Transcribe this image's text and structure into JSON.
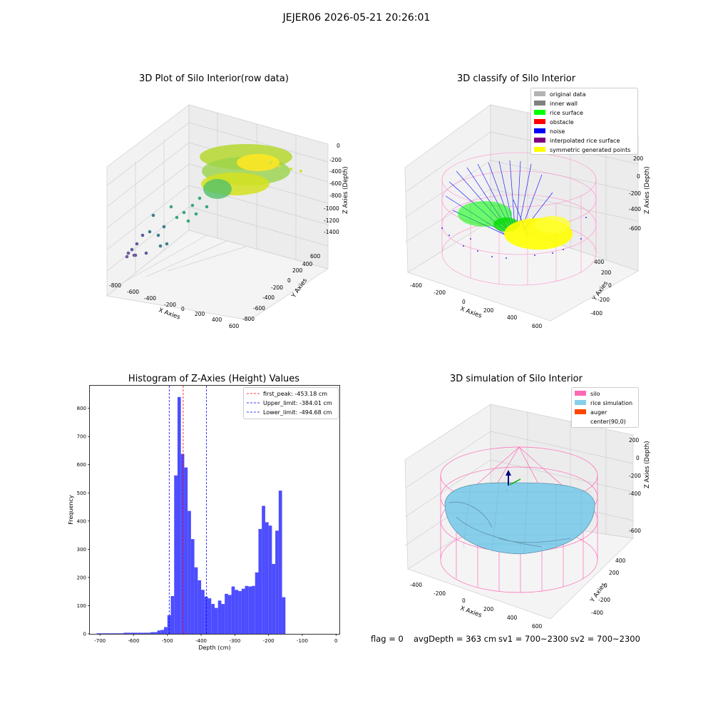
{
  "suptitle": "JEJER06 2026-05-21 20:26:01",
  "panels": {
    "raw": {
      "title": "3D Plot of Silo Interior(row data)",
      "xlabel": "X Axies",
      "ylabel": "Y Axies",
      "zlabel": "Z Axies (Depth)",
      "xticks": [
        "-800",
        "-600",
        "-400",
        "-200",
        "0",
        "200",
        "400",
        "600"
      ],
      "yticks": [
        "-800",
        "-600",
        "-400",
        "-200",
        "0",
        "200",
        "400",
        "600"
      ],
      "zticks": [
        "0",
        "-200",
        "-400",
        "-600",
        "-800",
        "-1000",
        "-1200",
        "-1400"
      ]
    },
    "classify": {
      "title": "3D classify of Silo Interior",
      "xlabel": "X Axies",
      "ylabel": "Y Axies",
      "zlabel": "Z Axies (Depth)",
      "xticks": [
        "-400",
        "-200",
        "0",
        "200",
        "400",
        "600"
      ],
      "yticks": [
        "-400",
        "-200",
        "0",
        "200",
        "400"
      ],
      "zticks": [
        "200",
        "0",
        "-200",
        "-400",
        "-600"
      ],
      "legend": [
        {
          "label": "original data",
          "color": "#b3b3b3"
        },
        {
          "label": "inner wall",
          "color": "#808080"
        },
        {
          "label": "rice surface",
          "color": "#00ff00"
        },
        {
          "label": "obstacle",
          "color": "#ff0000"
        },
        {
          "label": "noise",
          "color": "#0000ff"
        },
        {
          "label": "interpolated rice surface",
          "color": "#800080"
        },
        {
          "label": "symmetric generated points",
          "color": "#ffff00"
        }
      ]
    },
    "simulation": {
      "title": "3D simulation of Silo Interior",
      "xlabel": "X Axies",
      "ylabel": "Y Axies",
      "zlabel": "Z Axies (Depth)",
      "xticks": [
        "-400",
        "-200",
        "0",
        "200",
        "400",
        "600"
      ],
      "yticks": [
        "-400",
        "-200",
        "0",
        "200",
        "400"
      ],
      "zticks": [
        "200",
        "0",
        "-200",
        "-400",
        "-600"
      ],
      "legend": [
        {
          "label": "silo",
          "color": "#ff69b4"
        },
        {
          "label": "rice simulation",
          "color": "#87ceeb"
        },
        {
          "label": "auger",
          "color": "#ff4500"
        },
        {
          "label": "center(90,0)",
          "color": ""
        }
      ]
    }
  },
  "status": {
    "flag": "flag = 0",
    "avg": "avgDepth = 363 cm",
    "sv1": "sv1 = 700~2300",
    "sv2": "sv2 = 700~2300"
  },
  "chart_data": {
    "type": "bar",
    "title": "Histogram of Z-Axies (Height) Values",
    "xlabel": "Depth (cm)",
    "ylabel": "Frequency",
    "xlim": [
      -730,
      10
    ],
    "ylim": [
      0,
      880
    ],
    "xticks": [
      -700,
      -600,
      -500,
      -400,
      -300,
      -200,
      -100,
      0
    ],
    "yticks": [
      0,
      100,
      200,
      300,
      400,
      500,
      600,
      700,
      800
    ],
    "bin_width": 10,
    "bins": [
      {
        "x": -705,
        "y": 2
      },
      {
        "x": -695,
        "y": 2
      },
      {
        "x": -685,
        "y": 2
      },
      {
        "x": -675,
        "y": 2
      },
      {
        "x": -665,
        "y": 2
      },
      {
        "x": -655,
        "y": 2
      },
      {
        "x": -645,
        "y": 2
      },
      {
        "x": -635,
        "y": 2
      },
      {
        "x": -625,
        "y": 4
      },
      {
        "x": -615,
        "y": 4
      },
      {
        "x": -605,
        "y": 4
      },
      {
        "x": -595,
        "y": 4
      },
      {
        "x": -585,
        "y": 4
      },
      {
        "x": -575,
        "y": 4
      },
      {
        "x": -565,
        "y": 4
      },
      {
        "x": -555,
        "y": 4
      },
      {
        "x": -545,
        "y": 6
      },
      {
        "x": -535,
        "y": 6
      },
      {
        "x": -525,
        "y": 12
      },
      {
        "x": -515,
        "y": 14
      },
      {
        "x": -505,
        "y": 24
      },
      {
        "x": -495,
        "y": 66
      },
      {
        "x": -485,
        "y": 134
      },
      {
        "x": -475,
        "y": 562
      },
      {
        "x": -465,
        "y": 840
      },
      {
        "x": -455,
        "y": 638
      },
      {
        "x": -445,
        "y": 590
      },
      {
        "x": -435,
        "y": 436
      },
      {
        "x": -425,
        "y": 336
      },
      {
        "x": -415,
        "y": 236
      },
      {
        "x": -405,
        "y": 190
      },
      {
        "x": -395,
        "y": 156
      },
      {
        "x": -385,
        "y": 132
      },
      {
        "x": -375,
        "y": 126
      },
      {
        "x": -365,
        "y": 106
      },
      {
        "x": -355,
        "y": 92
      },
      {
        "x": -345,
        "y": 118
      },
      {
        "x": -335,
        "y": 106
      },
      {
        "x": -325,
        "y": 142
      },
      {
        "x": -315,
        "y": 138
      },
      {
        "x": -305,
        "y": 168
      },
      {
        "x": -295,
        "y": 156
      },
      {
        "x": -285,
        "y": 152
      },
      {
        "x": -275,
        "y": 160
      },
      {
        "x": -265,
        "y": 170
      },
      {
        "x": -255,
        "y": 168
      },
      {
        "x": -245,
        "y": 170
      },
      {
        "x": -235,
        "y": 218
      },
      {
        "x": -225,
        "y": 372
      },
      {
        "x": -215,
        "y": 454
      },
      {
        "x": -205,
        "y": 396
      },
      {
        "x": -195,
        "y": 384
      },
      {
        "x": -185,
        "y": 248
      },
      {
        "x": -175,
        "y": 366
      },
      {
        "x": -165,
        "y": 508
      },
      {
        "x": -155,
        "y": 130
      }
    ],
    "lines": [
      {
        "name": "first_peak: -453.18 cm",
        "x": -453.18,
        "color": "#ff0000"
      },
      {
        "name": "Upper_limit: -384.01 cm",
        "x": -384.01,
        "color": "#0000ff"
      },
      {
        "name": "Lower_limit: -494.68 cm",
        "x": -494.68,
        "color": "#0000ff"
      }
    ],
    "bar_color": "#4d4dff"
  }
}
